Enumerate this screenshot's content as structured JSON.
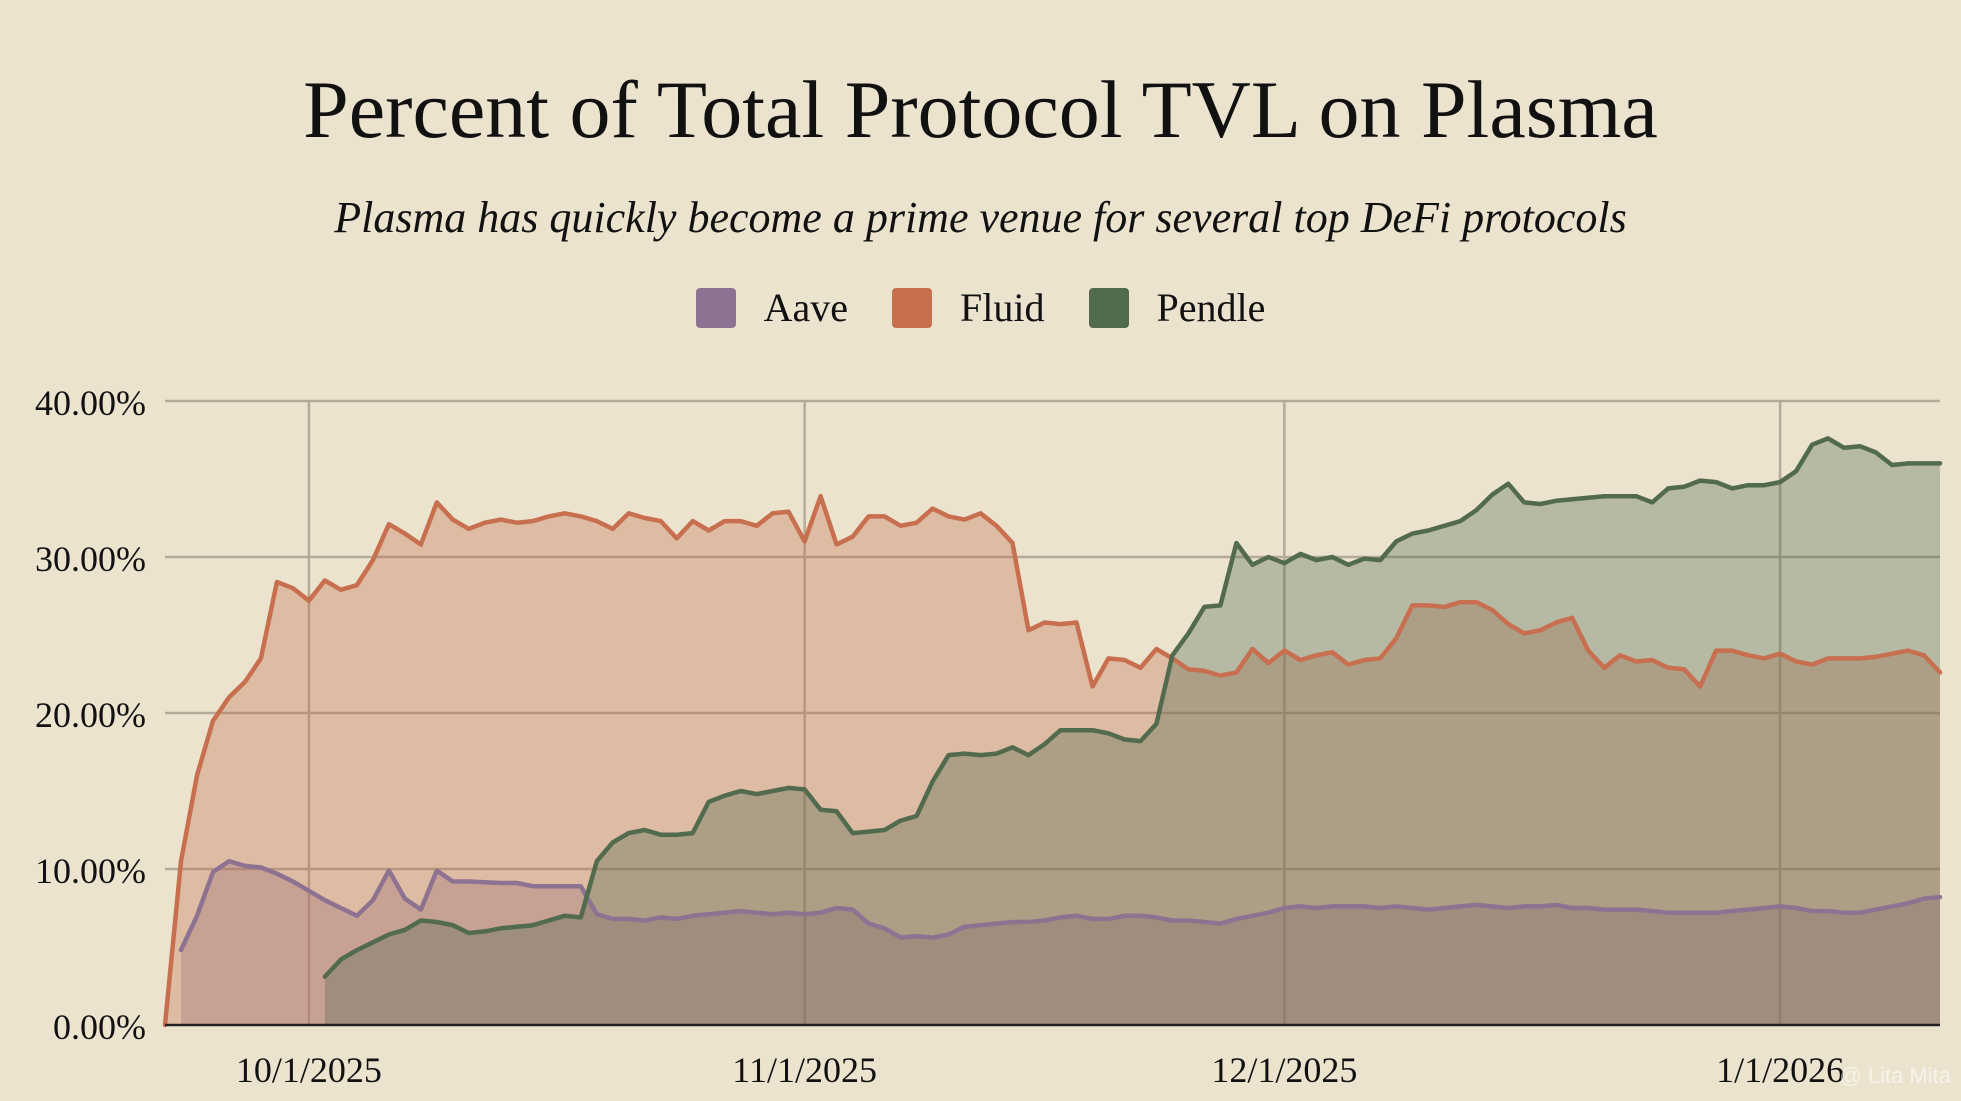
{
  "header": {
    "title": "Percent of Total Protocol TVL on Plasma",
    "subtitle": "Plasma has quickly become a prime venue for several top DeFi protocols"
  },
  "legend": [
    {
      "label": "Aave",
      "color": "#8d7391"
    },
    {
      "label": "Fluid",
      "color": "#c76f4f"
    },
    {
      "label": "Pendle",
      "color": "#526b4f"
    }
  ],
  "watermark": "@ Lita Mita",
  "chart_data": {
    "type": "area",
    "title": "Percent of Total Protocol TVL on Plasma",
    "subtitle": "Plasma has quickly become a prime venue for several top DeFi protocols",
    "xlabel": "",
    "ylabel": "",
    "x_start": "2025-09-22",
    "x_end": "2026-01-12",
    "x_unit": "days since 2025-09-22",
    "ylim": [
      0,
      40
    ],
    "yticks": [
      0,
      10,
      20,
      30,
      40
    ],
    "ytick_labels": [
      "0.00%",
      "10.00%",
      "20.00%",
      "30.00%",
      "40.00%"
    ],
    "xticks": [
      9,
      40,
      70,
      101
    ],
    "xtick_labels": [
      "10/1/2025",
      "11/1/2025",
      "12/1/2025",
      "1/1/2026"
    ],
    "grid": true,
    "legend_position": "top-center",
    "series": [
      {
        "name": "Aave",
        "color": "#8d7391",
        "x": [
          1,
          2,
          3,
          4,
          5,
          6,
          7,
          8,
          9,
          10,
          11,
          12,
          13,
          14,
          15,
          16,
          17,
          18,
          19,
          20,
          21,
          22,
          23,
          24,
          25,
          26,
          27,
          28,
          29,
          30,
          31,
          32,
          33,
          34,
          35,
          36,
          37,
          38,
          39,
          40,
          41,
          42,
          43,
          44,
          45,
          46,
          47,
          48,
          49,
          50,
          51,
          52,
          53,
          54,
          55,
          56,
          57,
          58,
          59,
          60,
          61,
          62,
          63,
          64,
          65,
          66,
          67,
          68,
          69,
          70,
          71,
          72,
          73,
          74,
          75,
          76,
          77,
          78,
          79,
          80,
          81,
          82,
          83,
          84,
          85,
          86,
          87,
          88,
          89,
          90,
          91,
          92,
          93,
          94,
          95,
          96,
          97,
          98,
          99,
          100,
          101,
          102,
          103,
          104,
          105,
          106,
          107,
          108,
          109,
          110,
          111
        ],
        "values": [
          4.8,
          7.0,
          9.8,
          10.5,
          10.2,
          10.1,
          9.7,
          9.2,
          8.6,
          8.0,
          7.5,
          7.0,
          8.0,
          9.9,
          8.1,
          7.4,
          9.9,
          9.2,
          9.2,
          9.15,
          9.1,
          9.1,
          8.9,
          8.9,
          8.9,
          8.9,
          7.1,
          6.8,
          6.8,
          6.7,
          6.9,
          6.8,
          7.0,
          7.1,
          7.2,
          7.3,
          7.2,
          7.1,
          7.2,
          7.1,
          7.2,
          7.5,
          7.4,
          6.5,
          6.2,
          5.6,
          5.7,
          5.6,
          5.8,
          6.3,
          6.4,
          6.5,
          6.6,
          6.6,
          6.7,
          6.9,
          7.0,
          6.8,
          6.8,
          7.0,
          7.0,
          6.9,
          6.7,
          6.7,
          6.6,
          6.5,
          6.8,
          7.0,
          7.2,
          7.5,
          7.6,
          7.5,
          7.6,
          7.6,
          7.6,
          7.5,
          7.6,
          7.5,
          7.4,
          7.5,
          7.6,
          7.7,
          7.6,
          7.5,
          7.6,
          7.6,
          7.7,
          7.5,
          7.5,
          7.4,
          7.4,
          7.4,
          7.3,
          7.2,
          7.2,
          7.2,
          7.2,
          7.3,
          7.4,
          7.5,
          7.6,
          7.5,
          7.3,
          7.3,
          7.2,
          7.2,
          7.4,
          7.6,
          7.8,
          8.1,
          8.2
        ]
      },
      {
        "name": "Fluid",
        "color": "#c76f4f",
        "x": [
          0,
          1,
          2,
          3,
          4,
          5,
          6,
          7,
          8,
          9,
          10,
          11,
          12,
          13,
          14,
          15,
          16,
          17,
          18,
          19,
          20,
          21,
          22,
          23,
          24,
          25,
          26,
          27,
          28,
          29,
          30,
          31,
          32,
          33,
          34,
          35,
          36,
          37,
          38,
          39,
          40,
          41,
          42,
          43,
          44,
          45,
          46,
          47,
          48,
          49,
          50,
          51,
          52,
          53,
          54,
          55,
          56,
          57,
          58,
          59,
          60,
          61,
          62,
          63,
          64,
          65,
          66,
          67,
          68,
          69,
          70,
          71,
          72,
          73,
          74,
          75,
          76,
          77,
          78,
          79,
          80,
          81,
          82,
          83,
          84,
          85,
          86,
          87,
          88,
          89,
          90,
          91,
          92,
          93,
          94,
          95,
          96,
          97,
          98,
          99,
          100,
          101,
          102,
          103,
          104,
          105,
          106,
          107,
          108,
          109,
          110,
          111
        ],
        "values": [
          0.0,
          10.5,
          16.0,
          19.5,
          21.0,
          22.0,
          23.5,
          28.4,
          28.0,
          27.2,
          28.5,
          27.9,
          28.2,
          29.8,
          32.1,
          31.5,
          30.8,
          33.5,
          32.4,
          31.8,
          32.2,
          32.4,
          32.2,
          32.3,
          32.6,
          32.8,
          32.6,
          32.3,
          31.8,
          32.8,
          32.5,
          32.3,
          31.2,
          32.3,
          31.7,
          32.3,
          32.3,
          32.0,
          32.8,
          32.9,
          31.0,
          33.9,
          30.8,
          31.3,
          32.6,
          32.6,
          32.0,
          32.2,
          33.1,
          32.6,
          32.4,
          32.8,
          32.0,
          30.9,
          25.3,
          25.8,
          25.7,
          25.8,
          21.7,
          23.5,
          23.4,
          22.9,
          24.1,
          23.5,
          22.8,
          22.7,
          22.4,
          22.6,
          24.1,
          23.2,
          24.0,
          23.4,
          23.7,
          23.9,
          23.1,
          23.4,
          23.5,
          24.8,
          26.9,
          26.9,
          26.8,
          27.1,
          27.1,
          26.6,
          25.7,
          25.1,
          25.3,
          25.8,
          26.1,
          24.0,
          22.9,
          23.7,
          23.3,
          23.4,
          22.9,
          22.8,
          21.7,
          24.0,
          24.0,
          23.7,
          23.5,
          23.8,
          23.3,
          23.1,
          23.5,
          23.5,
          23.5,
          23.6,
          23.8,
          24.0,
          23.7,
          22.6
        ]
      },
      {
        "name": "Pendle",
        "color": "#526b4f",
        "x": [
          10,
          11,
          12,
          13,
          14,
          15,
          16,
          17,
          18,
          19,
          20,
          21,
          22,
          23,
          24,
          25,
          26,
          27,
          28,
          29,
          30,
          31,
          32,
          33,
          34,
          35,
          36,
          37,
          38,
          39,
          40,
          41,
          42,
          43,
          44,
          45,
          46,
          47,
          48,
          49,
          50,
          51,
          52,
          53,
          54,
          55,
          56,
          57,
          58,
          59,
          60,
          61,
          62,
          63,
          64,
          65,
          66,
          67,
          68,
          69,
          70,
          71,
          72,
          73,
          74,
          75,
          76,
          77,
          78,
          79,
          80,
          81,
          82,
          83,
          84,
          85,
          86,
          87,
          88,
          89,
          90,
          91,
          92,
          93,
          94,
          95,
          96,
          97,
          98,
          99,
          100,
          101,
          102,
          103,
          104,
          105,
          106,
          107,
          108,
          109,
          110,
          111
        ],
        "values": [
          3.1,
          4.2,
          4.8,
          5.3,
          5.8,
          6.1,
          6.7,
          6.6,
          6.4,
          5.9,
          6.0,
          6.2,
          6.3,
          6.4,
          6.7,
          7.0,
          6.9,
          10.5,
          11.7,
          12.3,
          12.5,
          12.2,
          12.2,
          12.3,
          14.3,
          14.7,
          15.0,
          14.8,
          15.0,
          15.2,
          15.1,
          13.8,
          13.7,
          12.3,
          12.4,
          12.5,
          13.1,
          13.4,
          15.6,
          17.3,
          17.4,
          17.3,
          17.4,
          17.8,
          17.3,
          18.0,
          18.9,
          18.9,
          18.9,
          18.7,
          18.3,
          18.2,
          19.3,
          23.7,
          25.1,
          26.8,
          26.9,
          30.9,
          29.5,
          30.0,
          29.6,
          30.2,
          29.8,
          30.0,
          29.5,
          29.9,
          29.8,
          31.0,
          31.5,
          31.7,
          32.0,
          32.3,
          33.0,
          34.0,
          34.7,
          33.5,
          33.4,
          33.6,
          33.7,
          33.8,
          33.9,
          33.9,
          33.9,
          33.5,
          34.4,
          34.5,
          34.9,
          34.8,
          34.4,
          34.6,
          34.6,
          34.8,
          35.5,
          37.2,
          37.6,
          37.0,
          37.1,
          36.7,
          35.9,
          36.0,
          36.0,
          36.0
        ]
      }
    ]
  }
}
